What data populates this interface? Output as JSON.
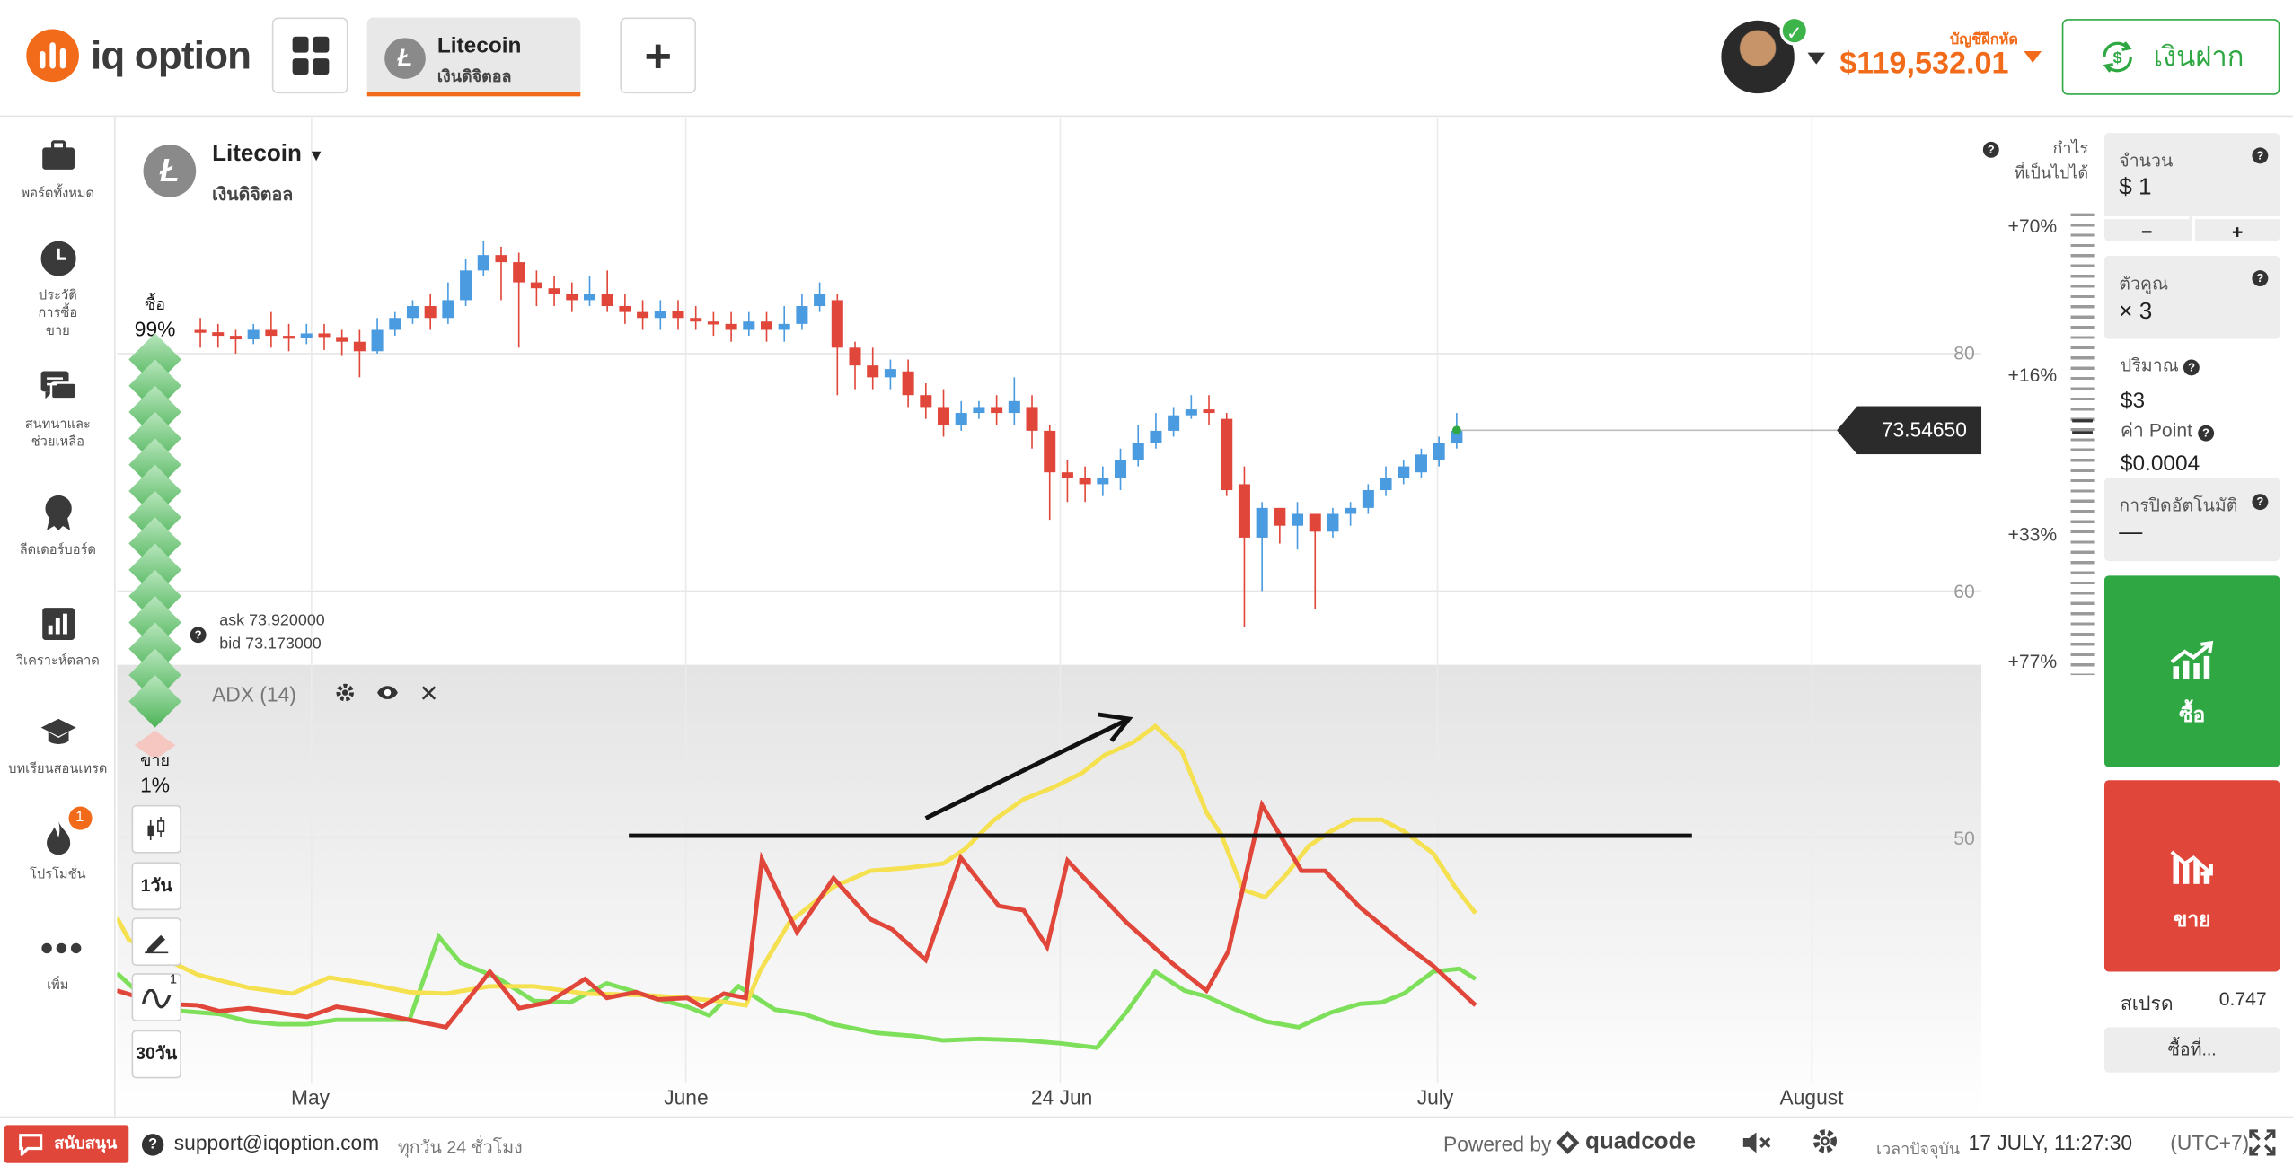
{
  "header": {
    "brand": "iq option",
    "asset_tab": {
      "name": "Litecoin",
      "category": "เงินดิจิตอล",
      "coin_symbol": "Ł"
    },
    "plus_label": "+",
    "account_type": "บัญชีฝึกหัด",
    "balance": "$119,532.01",
    "deposit_label": "เงินฝาก"
  },
  "sidebar": {
    "items": [
      {
        "label": "พอร์ตทั้งหมด",
        "icon": "briefcase-icon"
      },
      {
        "label": "ประวัติ การซื้อขาย",
        "icon": "clock-icon"
      },
      {
        "label": "สนทนาและ ช่วยเหลือ",
        "icon": "chat-icon"
      },
      {
        "label": "ลีดเดอร์บอร์ด",
        "icon": "award-icon"
      },
      {
        "label": "วิเคราะห์ตลาด",
        "icon": "bar-chart-icon"
      },
      {
        "label": "บทเรียนสอนเทรด",
        "icon": "graduation-cap-icon"
      },
      {
        "label": "โปรโมชั่น",
        "icon": "fire-icon",
        "badge": "1"
      },
      {
        "label": "เพิ่ม",
        "icon": "more-icon"
      }
    ]
  },
  "chart": {
    "asset_name": "Litecoin",
    "asset_category": "เงินดิจิตอล",
    "buy_label": "ซื้อ",
    "buy_pct": "99%",
    "sell_label": "ขาย",
    "sell_pct": "1%",
    "ask": "ask 73.920000",
    "bid": "bid 73.173000",
    "indicator": "ADX (14)",
    "current_price": "73.54650",
    "tools": {
      "timeframe": "1วัน",
      "range": "30วัน",
      "indicator_count": "1"
    },
    "y_ticks": [
      "80",
      "60",
      "50"
    ],
    "x_ticks": [
      "May",
      "June",
      "24 Jun",
      "July",
      "August"
    ],
    "colors": {
      "up": "#4a9be0",
      "down": "#e0473a",
      "adx": "#f5e050",
      "di_plus": "#7ee05a",
      "di_minus": "#e0473a"
    }
  },
  "chart_data": {
    "type": "candlestick",
    "title": "Litecoin",
    "x_ticks": [
      "May",
      "June",
      "24 Jun",
      "July",
      "August"
    ],
    "price_ticks": [
      80,
      60
    ],
    "indicator_ticks": [
      50
    ],
    "current_price": 73.5465,
    "candles": [
      {
        "o": 82.0,
        "c": 81.8,
        "h": 83.0,
        "l": 80.5
      },
      {
        "o": 81.8,
        "c": 81.5,
        "h": 82.5,
        "l": 80.5
      },
      {
        "o": 81.5,
        "c": 81.2,
        "h": 82.0,
        "l": 80.0
      },
      {
        "o": 81.2,
        "c": 82.0,
        "h": 82.5,
        "l": 80.8
      },
      {
        "o": 82.0,
        "c": 81.5,
        "h": 83.5,
        "l": 80.5
      },
      {
        "o": 81.5,
        "c": 81.3,
        "h": 82.5,
        "l": 80.2
      },
      {
        "o": 81.3,
        "c": 81.7,
        "h": 82.5,
        "l": 80.8
      },
      {
        "o": 81.7,
        "c": 81.4,
        "h": 82.5,
        "l": 80.3
      },
      {
        "o": 81.4,
        "c": 81.0,
        "h": 82.0,
        "l": 79.8
      },
      {
        "o": 81.0,
        "c": 80.2,
        "h": 82.0,
        "l": 78.0
      },
      {
        "o": 80.2,
        "c": 82.0,
        "h": 83.0,
        "l": 80.0
      },
      {
        "o": 82.0,
        "c": 83.0,
        "h": 83.5,
        "l": 81.5
      },
      {
        "o": 83.0,
        "c": 84.0,
        "h": 84.5,
        "l": 82.5
      },
      {
        "o": 84.0,
        "c": 83.0,
        "h": 85.0,
        "l": 82.0
      },
      {
        "o": 83.0,
        "c": 84.5,
        "h": 86.0,
        "l": 82.5
      },
      {
        "o": 84.5,
        "c": 87.0,
        "h": 88.0,
        "l": 84.0
      },
      {
        "o": 87.0,
        "c": 88.3,
        "h": 89.5,
        "l": 86.5
      },
      {
        "o": 88.3,
        "c": 87.7,
        "h": 89.0,
        "l": 84.5
      },
      {
        "o": 87.7,
        "c": 86.0,
        "h": 88.5,
        "l": 80.5
      },
      {
        "o": 86.0,
        "c": 85.5,
        "h": 87.0,
        "l": 84.0
      },
      {
        "o": 85.5,
        "c": 85.0,
        "h": 86.5,
        "l": 84.0
      },
      {
        "o": 85.0,
        "c": 84.5,
        "h": 86.0,
        "l": 83.5
      },
      {
        "o": 84.5,
        "c": 85.0,
        "h": 86.5,
        "l": 84.0
      },
      {
        "o": 85.0,
        "c": 84.0,
        "h": 87.0,
        "l": 83.5
      },
      {
        "o": 84.0,
        "c": 83.5,
        "h": 85.0,
        "l": 82.5
      },
      {
        "o": 83.5,
        "c": 83.0,
        "h": 84.5,
        "l": 82.0
      },
      {
        "o": 83.0,
        "c": 83.6,
        "h": 84.5,
        "l": 82.0
      },
      {
        "o": 83.6,
        "c": 83.0,
        "h": 84.5,
        "l": 82.0
      },
      {
        "o": 83.0,
        "c": 82.7,
        "h": 84.0,
        "l": 82.0
      },
      {
        "o": 82.7,
        "c": 82.5,
        "h": 83.5,
        "l": 81.5
      },
      {
        "o": 82.5,
        "c": 82.0,
        "h": 83.5,
        "l": 81.0
      },
      {
        "o": 82.0,
        "c": 82.7,
        "h": 83.5,
        "l": 81.5
      },
      {
        "o": 82.7,
        "c": 82.0,
        "h": 83.5,
        "l": 81.0
      },
      {
        "o": 82.0,
        "c": 82.5,
        "h": 84.0,
        "l": 81.0
      },
      {
        "o": 82.5,
        "c": 84.0,
        "h": 85.0,
        "l": 82.0
      },
      {
        "o": 84.0,
        "c": 85.0,
        "h": 86.0,
        "l": 83.5
      },
      {
        "o": 84.5,
        "c": 80.5,
        "h": 85.0,
        "l": 76.5
      },
      {
        "o": 80.5,
        "c": 79.0,
        "h": 81.0,
        "l": 77.0
      },
      {
        "o": 79.0,
        "c": 78.0,
        "h": 80.5,
        "l": 77.0
      },
      {
        "o": 78.0,
        "c": 78.7,
        "h": 79.5,
        "l": 77.0
      },
      {
        "o": 78.5,
        "c": 76.5,
        "h": 79.5,
        "l": 75.5
      },
      {
        "o": 76.5,
        "c": 75.5,
        "h": 77.5,
        "l": 74.5
      },
      {
        "o": 75.5,
        "c": 74.0,
        "h": 77.0,
        "l": 73.0
      },
      {
        "o": 74.0,
        "c": 75.0,
        "h": 76.0,
        "l": 73.5
      },
      {
        "o": 75.0,
        "c": 75.5,
        "h": 76.0,
        "l": 74.5
      },
      {
        "o": 75.5,
        "c": 75.0,
        "h": 76.5,
        "l": 74.0
      },
      {
        "o": 75.0,
        "c": 76.0,
        "h": 78.0,
        "l": 74.0
      },
      {
        "o": 75.5,
        "c": 73.5,
        "h": 76.5,
        "l": 72.0
      },
      {
        "o": 73.5,
        "c": 70.0,
        "h": 74.0,
        "l": 66.0
      },
      {
        "o": 70.0,
        "c": 69.5,
        "h": 71.0,
        "l": 67.5
      },
      {
        "o": 69.5,
        "c": 69.0,
        "h": 70.5,
        "l": 67.5
      },
      {
        "o": 69.0,
        "c": 69.5,
        "h": 70.5,
        "l": 68.0
      },
      {
        "o": 69.5,
        "c": 71.0,
        "h": 72.0,
        "l": 68.5
      },
      {
        "o": 71.0,
        "c": 72.5,
        "h": 74.0,
        "l": 70.5
      },
      {
        "o": 72.5,
        "c": 73.5,
        "h": 75.0,
        "l": 72.0
      },
      {
        "o": 73.5,
        "c": 74.8,
        "h": 75.5,
        "l": 73.0
      },
      {
        "o": 74.8,
        "c": 75.3,
        "h": 76.5,
        "l": 74.5
      },
      {
        "o": 75.3,
        "c": 75.0,
        "h": 76.5,
        "l": 74.0
      },
      {
        "o": 74.5,
        "c": 68.5,
        "h": 75.0,
        "l": 68.0
      },
      {
        "o": 69.0,
        "c": 64.5,
        "h": 70.5,
        "l": 57.0
      },
      {
        "o": 64.5,
        "c": 67.0,
        "h": 67.5,
        "l": 60.0
      },
      {
        "o": 67.0,
        "c": 65.5,
        "h": 67.0,
        "l": 64.0
      },
      {
        "o": 65.5,
        "c": 66.5,
        "h": 67.5,
        "l": 63.5
      },
      {
        "o": 66.5,
        "c": 65.0,
        "h": 66.5,
        "l": 58.5
      },
      {
        "o": 65.0,
        "c": 66.5,
        "h": 67.0,
        "l": 64.5
      },
      {
        "o": 66.5,
        "c": 67.0,
        "h": 67.5,
        "l": 65.5
      },
      {
        "o": 67.0,
        "c": 68.5,
        "h": 69.0,
        "l": 66.5
      },
      {
        "o": 68.5,
        "c": 69.5,
        "h": 70.5,
        "l": 68.0
      },
      {
        "o": 69.5,
        "c": 70.5,
        "h": 71.0,
        "l": 69.0
      },
      {
        "o": 70.0,
        "c": 71.5,
        "h": 72.0,
        "l": 69.5
      },
      {
        "o": 71.0,
        "c": 72.5,
        "h": 73.0,
        "l": 70.5
      },
      {
        "o": 72.5,
        "c": 73.5,
        "h": 75.0,
        "l": 72.0
      }
    ]
  },
  "profit_scale": {
    "title_line1": "กำไร",
    "title_line2": "ที่เป็นไปได้",
    "levels": [
      "+70%",
      "+16%",
      "+33%",
      "+77%"
    ]
  },
  "trade_panel": {
    "amount_label": "จำนวน",
    "amount_value": "$ 1",
    "minus": "−",
    "plus": "+",
    "multiplier_label": "ตัวคูณ",
    "multiplier_value": "× 3",
    "volume_label": "ปริมาณ",
    "volume_value": "$3",
    "point_label": "ค่า Point",
    "point_value": "$0.0004",
    "auto_close_label": "การปิดอัตโนมัติ",
    "auto_close_value": "—",
    "buy_label": "ซื้อ",
    "sell_label": "ขาย",
    "spread_label": "สเปรด",
    "spread_value": "0.747",
    "buy_at_label": "ซื้อที่..."
  },
  "footer": {
    "support_btn": "สนับสนุน",
    "support_email": "support@iqoption.com",
    "support_hours": "ทุกวัน 24 ชั่วโมง",
    "powered_by": "Powered by",
    "powered_brand": "quadcode",
    "time_label": "เวลาปัจจุบัน",
    "time_value": "17 JULY, 11:27:30",
    "timezone": "(UTC+7)"
  }
}
